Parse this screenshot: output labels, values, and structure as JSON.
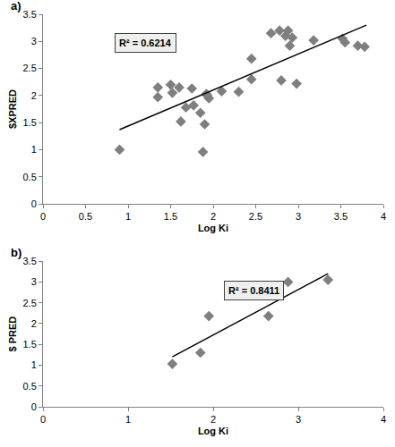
{
  "chart_data": [
    {
      "type": "scatter",
      "title": "a)",
      "x_label": "Log Ki",
      "y_label": "$XPRED",
      "annotations": [
        "R² = 0.6214"
      ],
      "xlim": [
        0,
        4
      ],
      "xticks": [
        0,
        0.5,
        1,
        1.5,
        2,
        2.5,
        3,
        3.5,
        4
      ],
      "ylim": [
        0,
        3.5
      ],
      "yticks": [
        0,
        0.5,
        1,
        1.5,
        2,
        2.5,
        3,
        3.5
      ],
      "grid": false,
      "series": [
        {
          "type": "scatter",
          "marker": "diamond",
          "color": "#7f7f7f",
          "x": [
            0.9,
            1.35,
            1.35,
            1.5,
            1.52,
            1.6,
            1.62,
            1.68,
            1.75,
            1.77,
            1.85,
            1.88,
            1.9,
            1.92,
            1.95,
            1.93,
            2.1,
            2.3,
            2.45,
            2.45,
            2.68,
            2.78,
            2.8,
            2.85,
            2.88,
            2.9,
            2.93,
            2.98,
            3.18,
            3.52,
            3.55,
            3.7,
            3.78
          ],
          "values": [
            1.0,
            2.15,
            1.97,
            2.2,
            2.05,
            2.15,
            1.52,
            1.78,
            2.13,
            1.82,
            1.68,
            0.96,
            1.47,
            2.03,
            1.95,
            2.0,
            2.08,
            2.07,
            2.68,
            2.3,
            3.15,
            3.2,
            2.28,
            3.1,
            3.2,
            2.92,
            3.07,
            2.22,
            3.02,
            3.05,
            2.98,
            2.92,
            2.9
          ]
        },
        {
          "type": "line",
          "line_style": "solid",
          "color": "#000000",
          "x": [
            0.9,
            3.8
          ],
          "values": [
            1.37,
            3.3
          ]
        }
      ]
    },
    {
      "type": "scatter",
      "title": "b)",
      "x_label": "Log Ki",
      "y_label": "$ PRED",
      "annotations": [
        "R² = 0.8411"
      ],
      "xlim": [
        0,
        4
      ],
      "xticks": [
        0,
        1,
        2,
        3,
        4
      ],
      "ylim": [
        0,
        3.5
      ],
      "yticks": [
        0,
        0.5,
        1,
        1.5,
        2,
        2.5,
        3,
        3.5
      ],
      "grid": false,
      "series": [
        {
          "type": "scatter",
          "marker": "diamond",
          "color": "#7f7f7f",
          "x": [
            1.52,
            1.85,
            1.95,
            2.65,
            2.88,
            3.35
          ],
          "values": [
            1.03,
            1.3,
            2.18,
            2.18,
            3.0,
            3.05
          ]
        },
        {
          "type": "line",
          "line_style": "solid",
          "color": "#000000",
          "x": [
            1.52,
            3.35
          ],
          "values": [
            1.2,
            3.2
          ]
        }
      ]
    }
  ]
}
